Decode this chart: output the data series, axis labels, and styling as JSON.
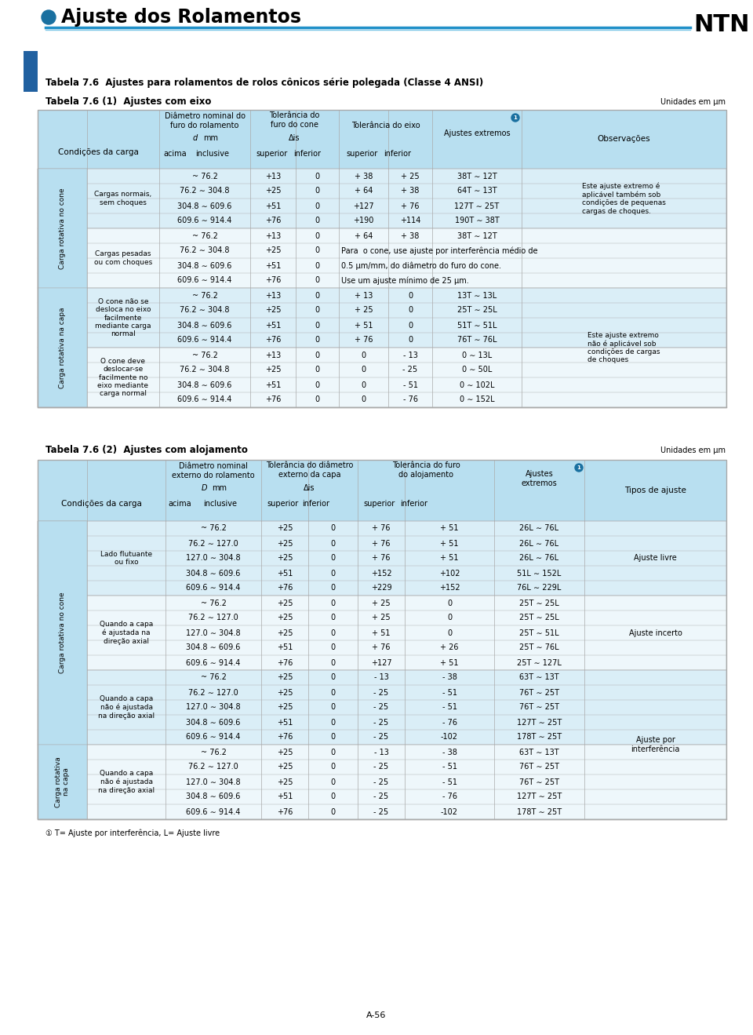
{
  "page_title": "Ajuste dos Rolamentos",
  "ntn_label": "NTN",
  "main_title": "Tabela 7.6  Ajustes para rolamentos de rolos cônicos série polegada (Classe 4 ANSI)",
  "table1_title": "Tabela 7.6 (1)  Ajustes com eixo",
  "table1_unit": "Unidades em μm",
  "table2_title": "Tabela 7.6 (2)  Ajustes com alojamento",
  "table2_unit": "Unidades em μm",
  "footer_note": "① T= Ajuste por interferência, L= Ajuste livre",
  "page_num": "A-56",
  "header_bg": "#b8dff0",
  "table_light": "#daeef7",
  "table_lighter": "#eef7fb",
  "blue_line": "#2090c8",
  "blue_dark": "#1a70a0",
  "side_rect_color": "#2060a0",
  "white": "#ffffff",
  "black": "#000000",
  "gray_border": "#aaaaaa"
}
